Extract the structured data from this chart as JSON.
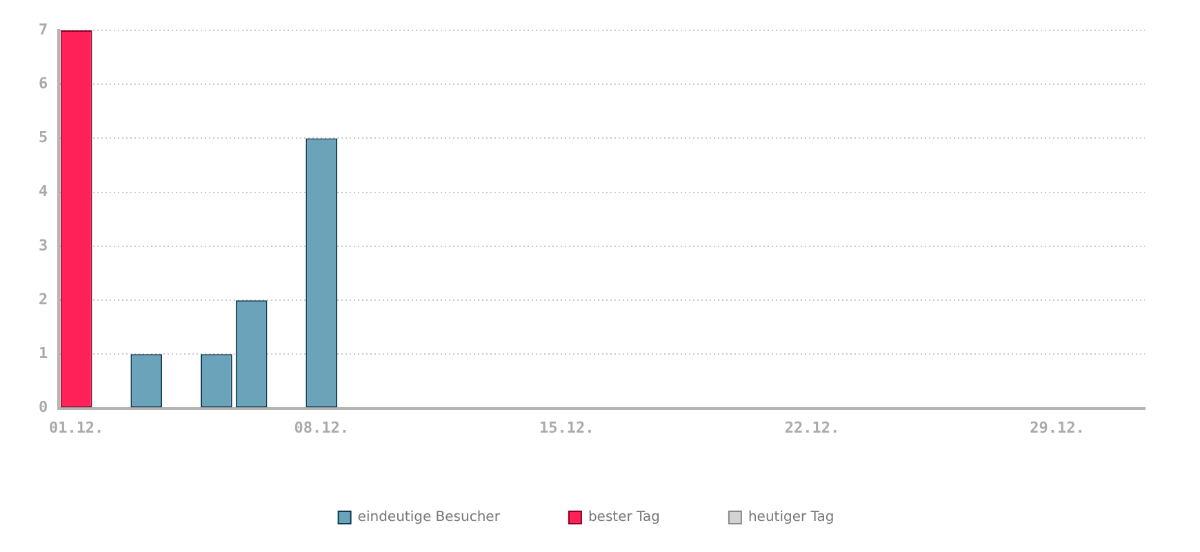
{
  "chart_data": {
    "type": "bar",
    "stacked": true,
    "categories": [
      "01.12.",
      null,
      null,
      null,
      null,
      null,
      null,
      "08.12.",
      null,
      null,
      null,
      null,
      null,
      null,
      "15.12.",
      null,
      null,
      null,
      null,
      null,
      null,
      "22.12.",
      null,
      null,
      null,
      null,
      null,
      null,
      "29.12.",
      null,
      null
    ],
    "series": [
      {
        "name": "eindeutige Besucher",
        "color": "#6ba3bb",
        "values": [
          0,
          0,
          1,
          0,
          1,
          2,
          0,
          5,
          0,
          0,
          0,
          0,
          0,
          0,
          0,
          0,
          0,
          0,
          0,
          0,
          0,
          0,
          0,
          0,
          0,
          0,
          0,
          0,
          0,
          0,
          0
        ]
      },
      {
        "name": "bester Tag",
        "color": "#ff2157",
        "values": [
          7,
          0,
          0,
          0,
          0,
          0,
          0,
          0,
          0,
          0,
          0,
          0,
          0,
          0,
          0,
          0,
          0,
          0,
          0,
          0,
          0,
          0,
          0,
          0,
          0,
          0,
          0,
          0,
          0,
          0,
          0
        ]
      },
      {
        "name": "heutiger Tag",
        "color": "#d3d3d3",
        "values": [
          0,
          0,
          0,
          0,
          0,
          0,
          0,
          0,
          0,
          0,
          0,
          0,
          0,
          0,
          0,
          0,
          0,
          0,
          0,
          0,
          0,
          0,
          0,
          0,
          0,
          0,
          0,
          0,
          0,
          0,
          0
        ]
      }
    ],
    "ylim": [
      0,
      7
    ],
    "yticks": [
      0,
      1,
      2,
      3,
      4,
      5,
      6,
      7
    ],
    "grid": "y",
    "legend": "bottom"
  }
}
